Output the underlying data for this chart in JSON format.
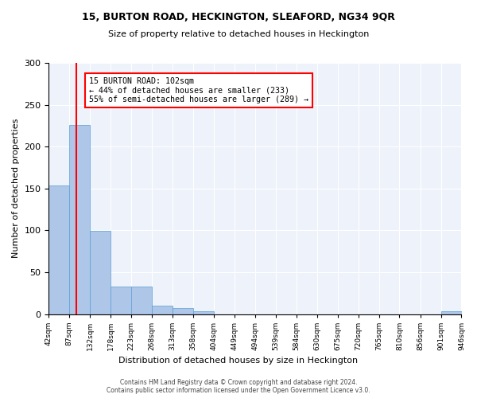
{
  "title": "15, BURTON ROAD, HECKINGTON, SLEAFORD, NG34 9QR",
  "subtitle": "Size of property relative to detached houses in Heckington",
  "xlabel": "Distribution of detached houses by size in Heckington",
  "ylabel": "Number of detached properties",
  "bin_edges": [
    42,
    87,
    132,
    178,
    223,
    268,
    313,
    358,
    404,
    449,
    494,
    539,
    584,
    630,
    675,
    720,
    765,
    810,
    856,
    901,
    946
  ],
  "bin_labels": [
    "42sqm",
    "87sqm",
    "132sqm",
    "178sqm",
    "223sqm",
    "268sqm",
    "313sqm",
    "358sqm",
    "404sqm",
    "449sqm",
    "494sqm",
    "539sqm",
    "584sqm",
    "630sqm",
    "675sqm",
    "720sqm",
    "765sqm",
    "810sqm",
    "856sqm",
    "901sqm",
    "946sqm"
  ],
  "counts": [
    154,
    226,
    99,
    33,
    33,
    10,
    7,
    3,
    0,
    0,
    0,
    0,
    0,
    0,
    0,
    0,
    0,
    0,
    0,
    3,
    0
  ],
  "bar_color": "#aec6e8",
  "bar_edge_color": "#5a9fd4",
  "red_line_x": 102,
  "annotation_text": "15 BURTON ROAD: 102sqm\n← 44% of detached houses are smaller (233)\n55% of semi-detached houses are larger (289) →",
  "annotation_box_color": "white",
  "annotation_box_edge_color": "red",
  "vline_color": "red",
  "ylim": [
    0,
    300
  ],
  "yticks": [
    0,
    50,
    100,
    150,
    200,
    250,
    300
  ],
  "background_color": "#eef2fa",
  "footer_line1": "Contains HM Land Registry data © Crown copyright and database right 2024.",
  "footer_line2": "Contains public sector information licensed under the Open Government Licence v3.0."
}
